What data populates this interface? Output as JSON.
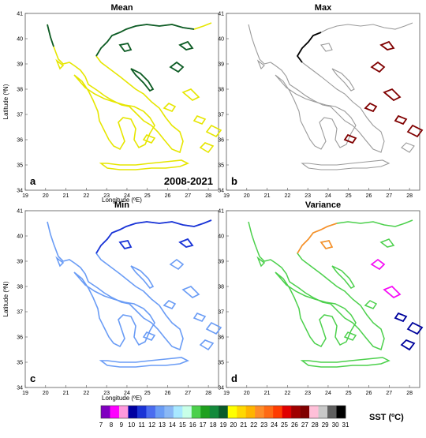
{
  "figure_label": "2008-2021",
  "panels": [
    {
      "letter": "a",
      "title": "Mean"
    },
    {
      "letter": "b",
      "title": "Max"
    },
    {
      "letter": "c",
      "title": "Min"
    },
    {
      "letter": "d",
      "title": "Variance"
    }
  ],
  "axes": {
    "xlabel": "Longitude (ºE)",
    "ylabel": "Latitude (ºN)",
    "x_ticks": [
      "19",
      "20",
      "21",
      "22",
      "23",
      "24",
      "25",
      "26",
      "27",
      "28"
    ],
    "y_ticks": [
      "34",
      "35",
      "36",
      "37",
      "38",
      "39",
      "40",
      "41"
    ],
    "x_range": [
      19,
      28.5
    ],
    "y_range": [
      34,
      41
    ]
  },
  "colorbar": {
    "label": "SST (ºC)",
    "ticks": [
      "7",
      "8",
      "9",
      "10",
      "11",
      "12",
      "13",
      "14",
      "15",
      "16",
      "17",
      "18",
      "19",
      "20",
      "21",
      "22",
      "23",
      "24",
      "25",
      "26",
      "27",
      "28",
      "29",
      "30",
      "31"
    ],
    "colors": [
      "#8000c0",
      "#ff00ff",
      "#ff99dd",
      "#0000a0",
      "#1a33d6",
      "#4a6cf0",
      "#6a9cf5",
      "#8ab8f5",
      "#a8e8ff",
      "#c8ffe8",
      "#4cd04c",
      "#1ea01e",
      "#138a3c",
      "#0a5a2a",
      "#ffff00",
      "#ffd800",
      "#ffb400",
      "#ff8c28",
      "#ff6a14",
      "#ff3c00",
      "#e00000",
      "#a00000",
      "#800000",
      "#ffbfd8",
      "#c8c8c8",
      "#606060",
      "#000000"
    ]
  }
}
